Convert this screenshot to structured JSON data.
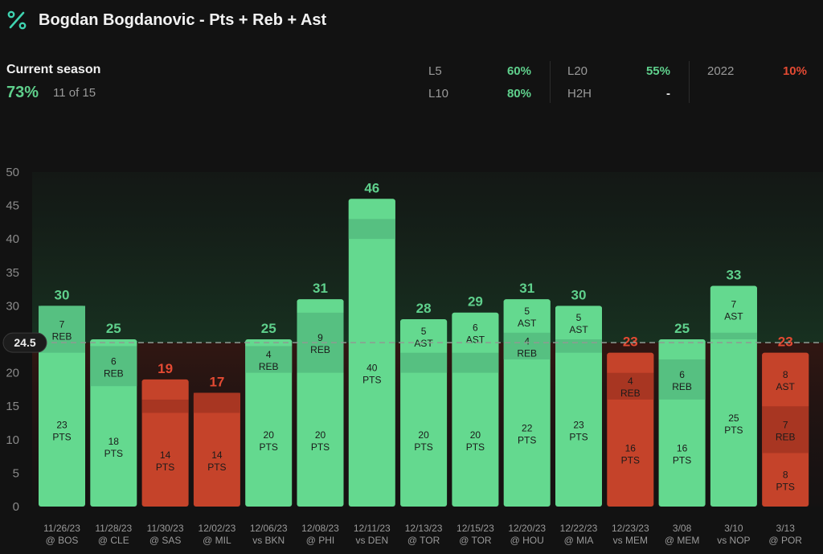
{
  "header": {
    "logo_icon": "percent-icon",
    "title": "Bogdan Bogdanovic - Pts + Reb + Ast"
  },
  "season": {
    "label": "Current season",
    "pct": "73%",
    "count": "11 of 15"
  },
  "stats": {
    "l5": {
      "label": "L5",
      "value": "60%"
    },
    "l10": {
      "label": "L10",
      "value": "80%"
    },
    "l20": {
      "label": "L20",
      "value": "55%"
    },
    "h2h": {
      "label": "H2H",
      "value": "-"
    },
    "y2022": {
      "label": "2022",
      "value": "10%"
    }
  },
  "colors": {
    "hit": "#64d98f",
    "miss": "#c5432a",
    "hit_text": "#5fd08c",
    "miss_text": "#e34a33",
    "background": "#121212"
  },
  "chart_data": {
    "type": "bar",
    "stacked": true,
    "ylim": [
      0,
      50
    ],
    "yticks": [
      0,
      5,
      10,
      15,
      20,
      25,
      30,
      35,
      40,
      45,
      50
    ],
    "line": 24.5,
    "line_label": "24.5",
    "categories": [
      {
        "date": "11/26/23",
        "opp": "@ BOS"
      },
      {
        "date": "11/28/23",
        "opp": "@ CLE"
      },
      {
        "date": "11/30/23",
        "opp": "@ SAS"
      },
      {
        "date": "12/02/23",
        "opp": "@ MIL"
      },
      {
        "date": "12/06/23",
        "opp": "vs BKN"
      },
      {
        "date": "12/08/23",
        "opp": "@ PHI"
      },
      {
        "date": "12/11/23",
        "opp": "vs DEN"
      },
      {
        "date": "12/13/23",
        "opp": "@ TOR"
      },
      {
        "date": "12/15/23",
        "opp": "@ TOR"
      },
      {
        "date": "12/20/23",
        "opp": "@ HOU"
      },
      {
        "date": "12/22/23",
        "opp": "@ MIA"
      },
      {
        "date": "12/23/23",
        "opp": "vs MEM"
      },
      {
        "date": "3/08",
        "opp": "@ MEM"
      },
      {
        "date": "3/10",
        "opp": "vs NOP"
      },
      {
        "date": "3/13",
        "opp": "@ POR"
      }
    ],
    "series": [
      {
        "name": "PTS",
        "values": [
          23,
          18,
          14,
          14,
          20,
          20,
          40,
          20,
          20,
          22,
          23,
          16,
          16,
          25,
          8
        ]
      },
      {
        "name": "REB",
        "values": [
          7,
          6,
          2,
          3,
          4,
          9,
          3,
          3,
          3,
          4,
          2,
          4,
          6,
          1,
          7
        ]
      },
      {
        "name": "AST",
        "values": [
          0,
          1,
          3,
          0,
          1,
          2,
          3,
          5,
          6,
          5,
          5,
          3,
          3,
          7,
          8
        ]
      }
    ],
    "totals": [
      30,
      25,
      19,
      17,
      25,
      31,
      46,
      28,
      29,
      31,
      30,
      23,
      25,
      33,
      23
    ],
    "segment_labels": [
      [
        {
          "value": "23",
          "stat": "PTS"
        },
        {
          "value": "7",
          "stat": "REB"
        },
        null
      ],
      [
        {
          "value": "18",
          "stat": "PTS"
        },
        {
          "value": "6",
          "stat": "REB"
        },
        null
      ],
      [
        {
          "value": "14",
          "stat": "PTS"
        },
        null,
        null
      ],
      [
        {
          "value": "14",
          "stat": "PTS"
        },
        null,
        null
      ],
      [
        {
          "value": "20",
          "stat": "PTS"
        },
        {
          "value": "4",
          "stat": "REB"
        },
        null
      ],
      [
        {
          "value": "20",
          "stat": "PTS"
        },
        {
          "value": "9",
          "stat": "REB"
        },
        null
      ],
      [
        {
          "value": "40",
          "stat": "PTS"
        },
        null,
        null
      ],
      [
        {
          "value": "20",
          "stat": "PTS"
        },
        null,
        {
          "value": "5",
          "stat": "AST"
        }
      ],
      [
        {
          "value": "20",
          "stat": "PTS"
        },
        null,
        {
          "value": "6",
          "stat": "AST"
        }
      ],
      [
        {
          "value": "22",
          "stat": "PTS"
        },
        {
          "value": "4",
          "stat": "REB"
        },
        {
          "value": "5",
          "stat": "AST"
        }
      ],
      [
        {
          "value": "23",
          "stat": "PTS"
        },
        null,
        {
          "value": "5",
          "stat": "AST"
        }
      ],
      [
        {
          "value": "16",
          "stat": "PTS"
        },
        {
          "value": "4",
          "stat": "REB"
        },
        null
      ],
      [
        {
          "value": "16",
          "stat": "PTS"
        },
        {
          "value": "6",
          "stat": "REB"
        },
        null
      ],
      [
        {
          "value": "25",
          "stat": "PTS"
        },
        null,
        {
          "value": "7",
          "stat": "AST"
        }
      ],
      [
        {
          "value": "8",
          "stat": "PTS"
        },
        {
          "value": "7",
          "stat": "REB"
        },
        {
          "value": "8",
          "stat": "AST"
        }
      ]
    ]
  }
}
